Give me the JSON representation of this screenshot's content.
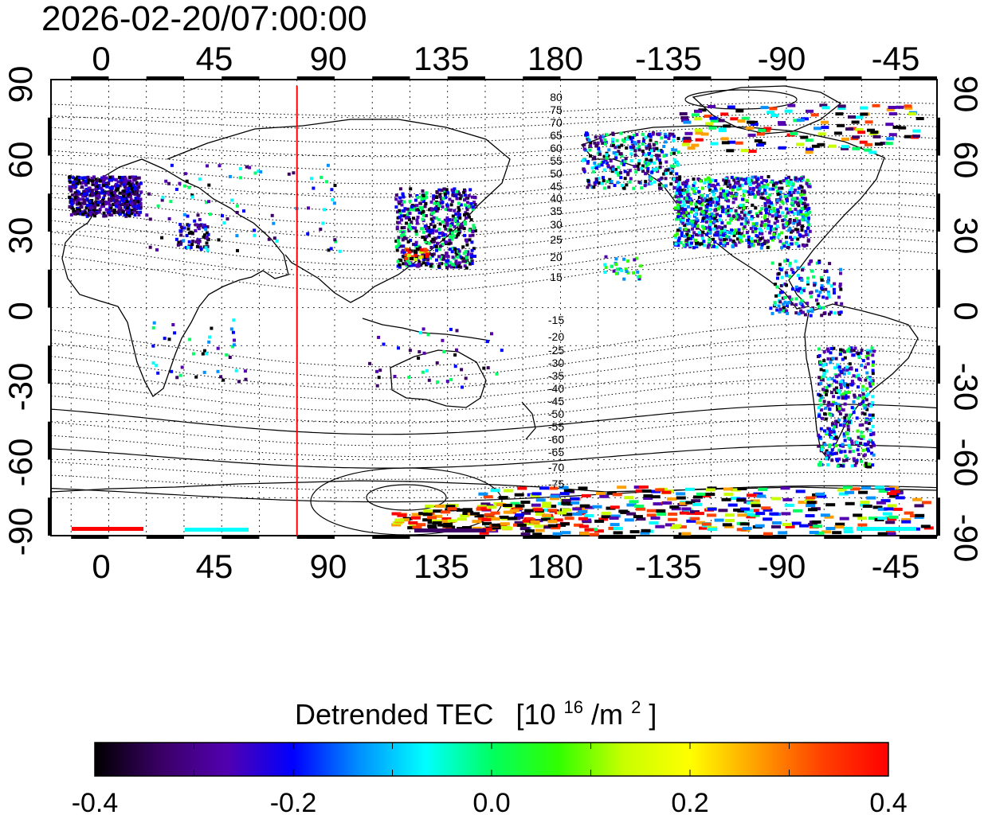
{
  "timestamp": "2026-02-20/07:00:00",
  "map": {
    "lon_ticks": [
      "0",
      "45",
      "90",
      "135",
      "180",
      "-135",
      "-90",
      "-45"
    ],
    "lat_ticks": [
      "90",
      "60",
      "30",
      "0",
      "-30",
      "-60",
      "-90"
    ],
    "lon_range_deg": [
      -23,
      330
    ],
    "lat_range_deg": [
      -90,
      90
    ],
    "terminator_lon": 75,
    "contour_labels_north": [
      "80",
      "75",
      "70",
      "65",
      "60",
      "55",
      "50",
      "45",
      "40",
      "35",
      "30",
      "25",
      "20",
      "15"
    ],
    "contour_labels_south": [
      "-15",
      "-20",
      "-25",
      "-30",
      "-35",
      "-40",
      "-45",
      "-50",
      "-55",
      "-60",
      "-65",
      "-70",
      "-75"
    ]
  },
  "colorbar": {
    "title": "Detrended TEC",
    "unit_prefix": "[10",
    "unit_exp1": "16",
    "unit_mid": "/m",
    "unit_exp2": "2",
    "unit_suffix": "]",
    "ticks": [
      "-0.4",
      "-0.2",
      "0.0",
      "0.2",
      "0.4"
    ],
    "min": -0.4,
    "max": 0.4
  },
  "colors": {
    "terminator": "#ff0000",
    "frame": "#000000",
    "cmap": [
      "#000000",
      "#3a0066",
      "#5200b0",
      "#0000ff",
      "#0090ff",
      "#00ffff",
      "#00ff60",
      "#30ff00",
      "#c8ff00",
      "#ffff00",
      "#ffa000",
      "#ff4000",
      "#ff0000"
    ]
  }
}
